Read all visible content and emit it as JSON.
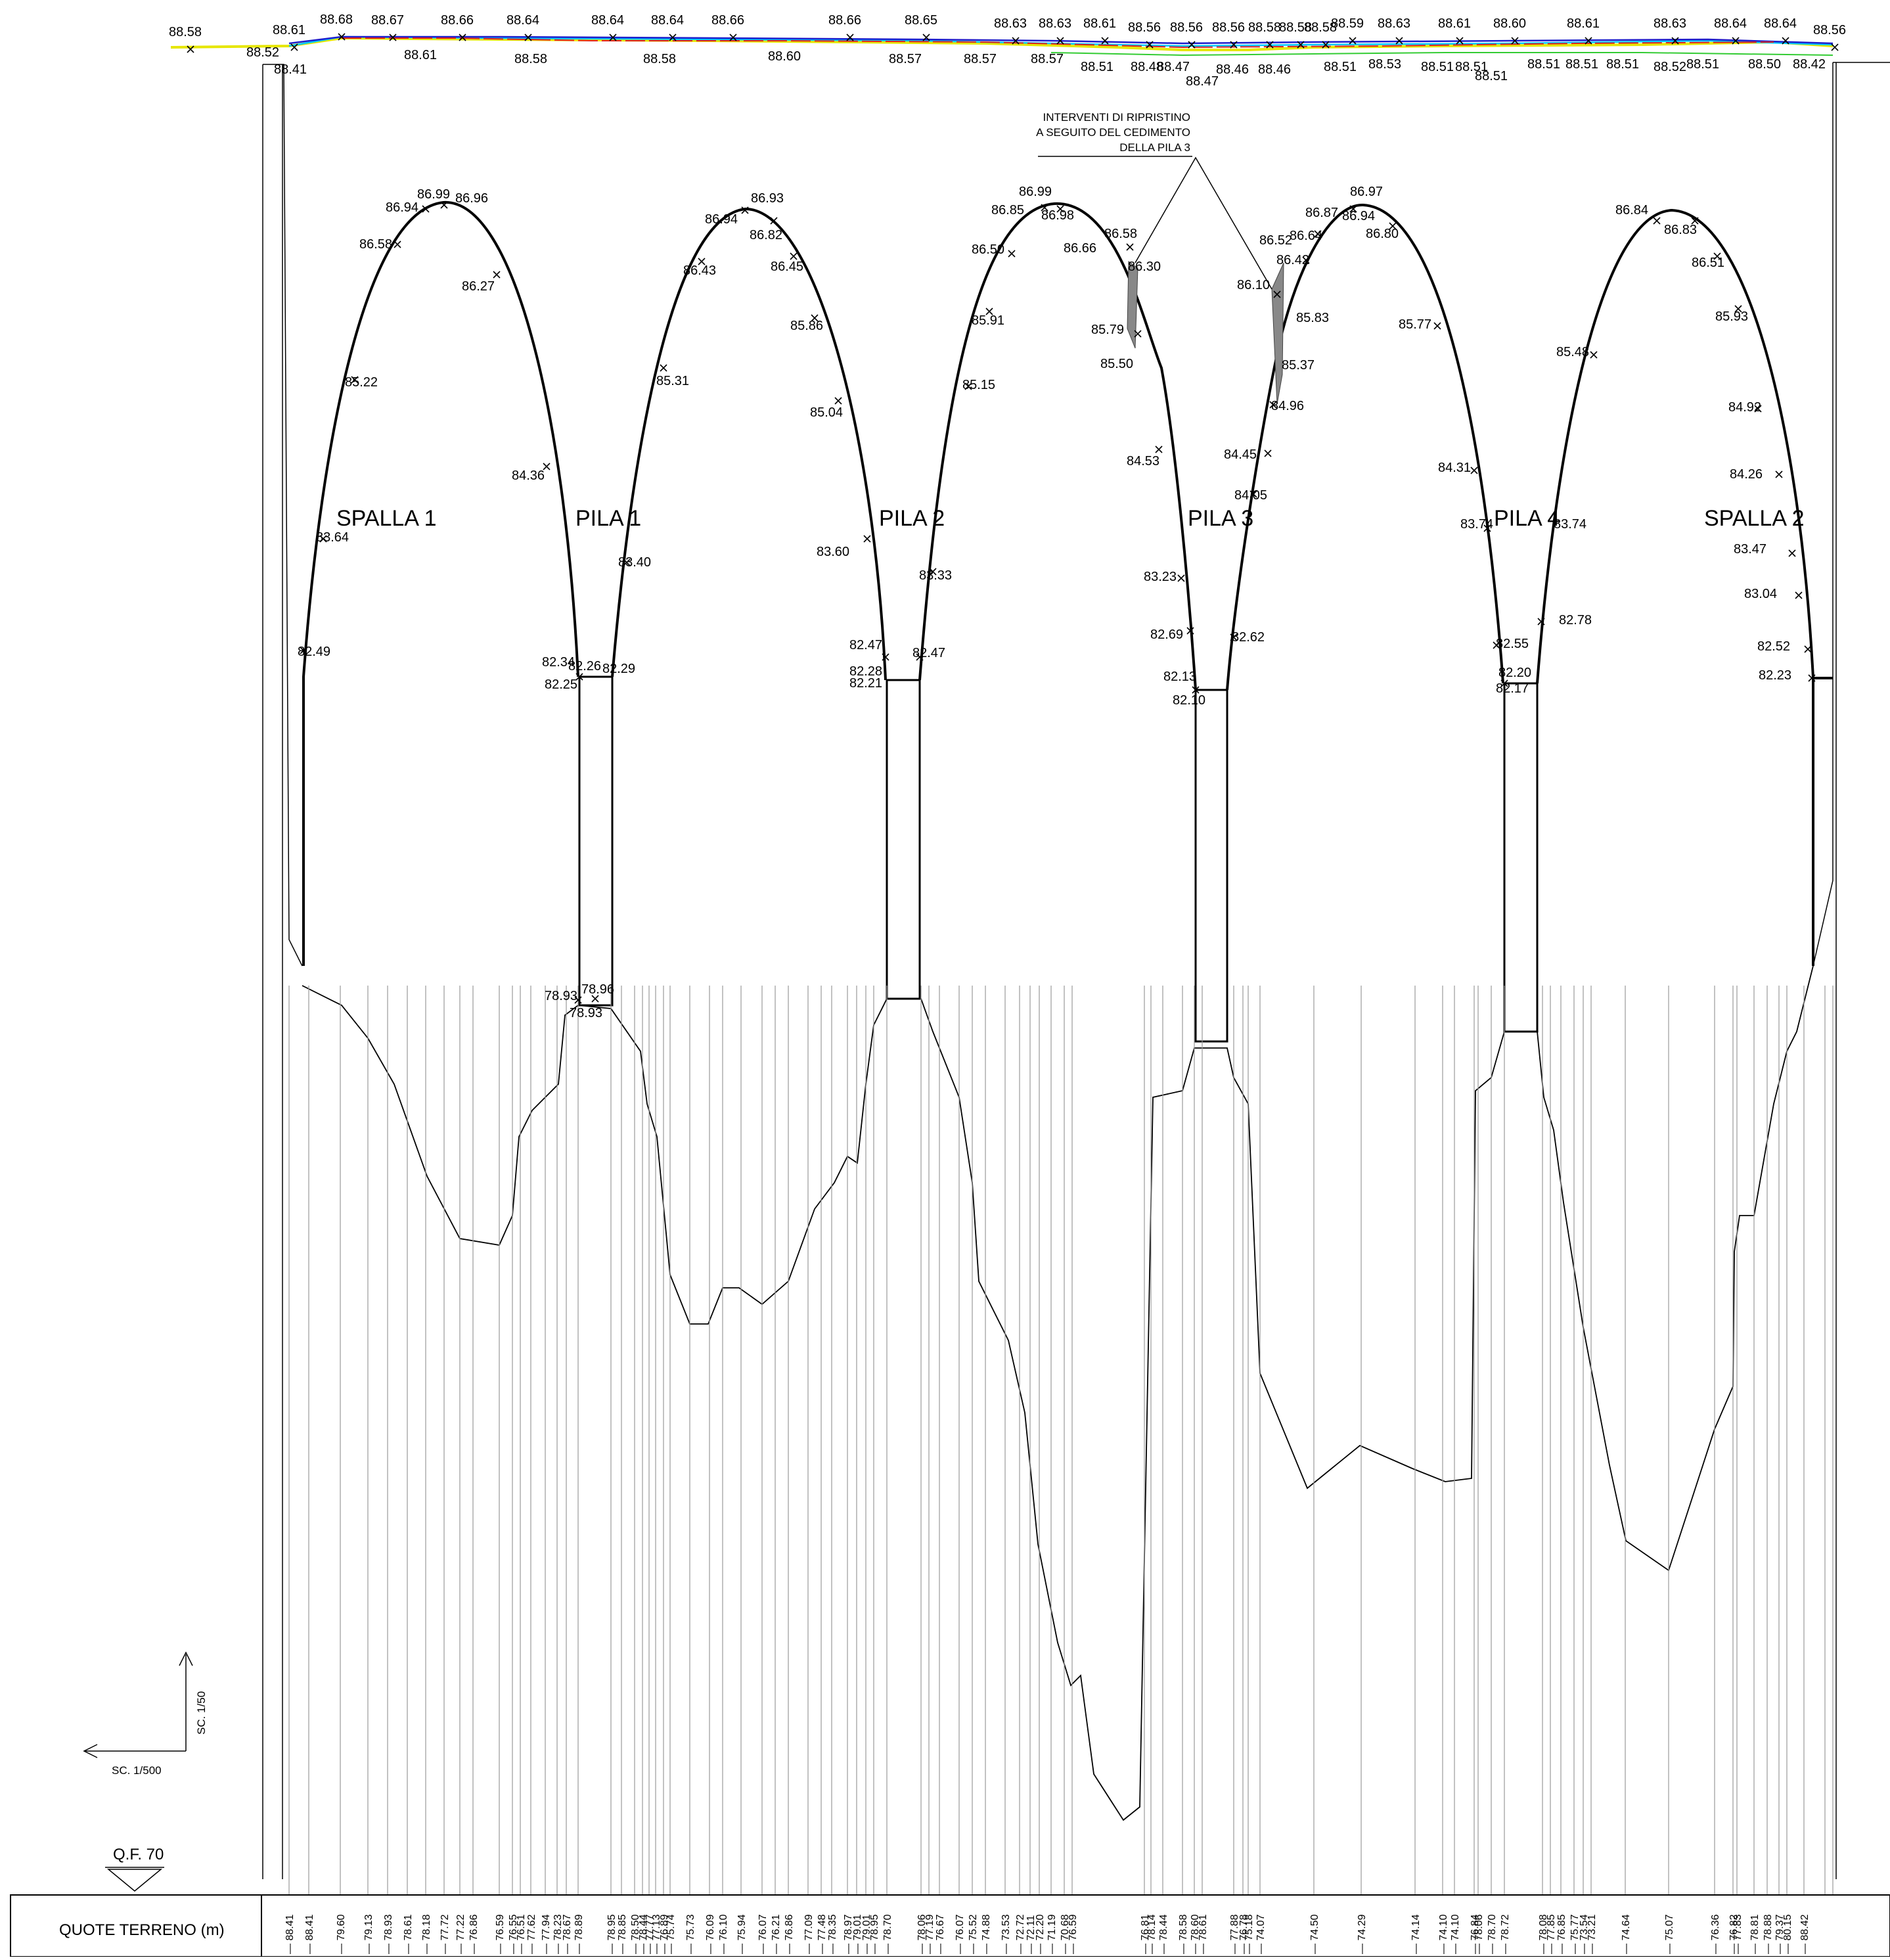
{
  "labels": {
    "spalla1": "SPALLA 1",
    "pila1": "PILA 1",
    "pila2": "PILA 2",
    "pila3": "PILA 3",
    "pila4": "PILA 4",
    "spalla2": "SPALLA 2"
  },
  "note": {
    "line1": "INTERVENTI DI RIPRISTINO",
    "line2": "A SEGUITO DEL CEDIMENTO",
    "line3": "DELLA PILA 3"
  },
  "scale": {
    "vertical": "SC. 1/50",
    "horizontal": "SC. 1/500"
  },
  "datum": "Q.F. 70",
  "table_header": "QUOTE TERRENO (m)",
  "deck_top_values": [
    "88.58",
    "88.61",
    "88.68",
    "88.67",
    "88.66",
    "88.64",
    "88.64",
    "88.64",
    "88.66",
    "88.66",
    "88.65",
    "88.63",
    "88.63",
    "88.61",
    "88.56",
    "88.56",
    "88.56",
    "88.58",
    "88.58",
    "88.58",
    "88.59",
    "88.63",
    "88.61",
    "88.60",
    "88.61",
    "88.63",
    "88.64",
    "88.64",
    "88.56"
  ],
  "deck_bottom_values": [
    "88.52",
    "88.41",
    "88.61",
    "88.58",
    "88.58",
    "88.60",
    "88.57",
    "88.57",
    "88.57",
    "88.51",
    "88.48",
    "88.47",
    "88.47",
    "88.46",
    "88.46",
    "88.51",
    "88.53",
    "88.51",
    "88.51",
    "88.51",
    "88.51",
    "88.51",
    "88.51",
    "88.52",
    "88.51",
    "88.50",
    "88.42"
  ],
  "arch_labels": [
    "86.99",
    "86.94",
    "86.96",
    "86.58",
    "86.27",
    "85.22",
    "84.36",
    "83.64",
    "82.49",
    "82.34",
    "82.26",
    "82.25",
    "82.29",
    "83.40",
    "85.31",
    "86.43",
    "86.94",
    "86.93",
    "86.82",
    "86.45",
    "85.86",
    "85.04",
    "83.60",
    "82.47",
    "82.28",
    "82.21",
    "82.47",
    "83.33",
    "85.15",
    "85.91",
    "86.50",
    "86.85",
    "86.99",
    "86.98",
    "86.66",
    "86.58",
    "86.30",
    "85.79",
    "85.50",
    "84.53",
    "83.23",
    "82.69",
    "82.13",
    "82.10",
    "82.62",
    "84.05",
    "84.45",
    "84.96",
    "85.37",
    "85.83",
    "86.10",
    "86.52",
    "86.64",
    "86.42",
    "86.87",
    "86.97",
    "86.94",
    "86.80",
    "85.77",
    "84.31",
    "83.74",
    "83.74",
    "82.78",
    "82.55",
    "82.20",
    "82.17",
    "85.48",
    "86.84",
    "86.83",
    "86.51",
    "85.93",
    "84.92",
    "84.26",
    "83.47",
    "83.04",
    "82.52",
    "82.23",
    "78.93",
    "78.96",
    "78.93"
  ],
  "ground_levels": [
    "88.41",
    "88.41",
    "79.60",
    "79.13",
    "78.93",
    "78.61",
    "78.18",
    "77.72",
    "77.22",
    "76.86",
    "76.59",
    "76.55",
    "76.51",
    "77.62",
    "77.94",
    "78.23",
    "78.67",
    "78.89",
    "78.95",
    "78.85",
    "78.50",
    "78.44",
    "77.77",
    "77.13",
    "76.89",
    "75.74",
    "75.73",
    "76.09",
    "76.10",
    "75.94",
    "76.07",
    "76.21",
    "76.86",
    "77.09",
    "77.48",
    "78.35",
    "78.97",
    "79.01",
    "79.01",
    "78.95",
    "78.70",
    "78.06",
    "77.19",
    "76.67",
    "76.07",
    "75.52",
    "74.88",
    "73.53",
    "72.72",
    "72.11",
    "72.20",
    "71.19",
    "70.68",
    "76.59",
    "76.81",
    "78.14",
    "78.44",
    "78.58",
    "78.60",
    "78.61",
    "77.88",
    "76.78",
    "75.18",
    "74.07",
    "74.50",
    "74.29",
    "74.14",
    "74.10",
    "74.10",
    "76.84",
    "78.06",
    "78.70",
    "78.72",
    "78.08",
    "77.85",
    "76.85",
    "75.77",
    "73.54",
    "73.21",
    "74.64",
    "75.07",
    "76.36",
    "76.82",
    "77.83",
    "78.81",
    "78.88",
    "79.37",
    "80.15",
    "88.42"
  ]
}
